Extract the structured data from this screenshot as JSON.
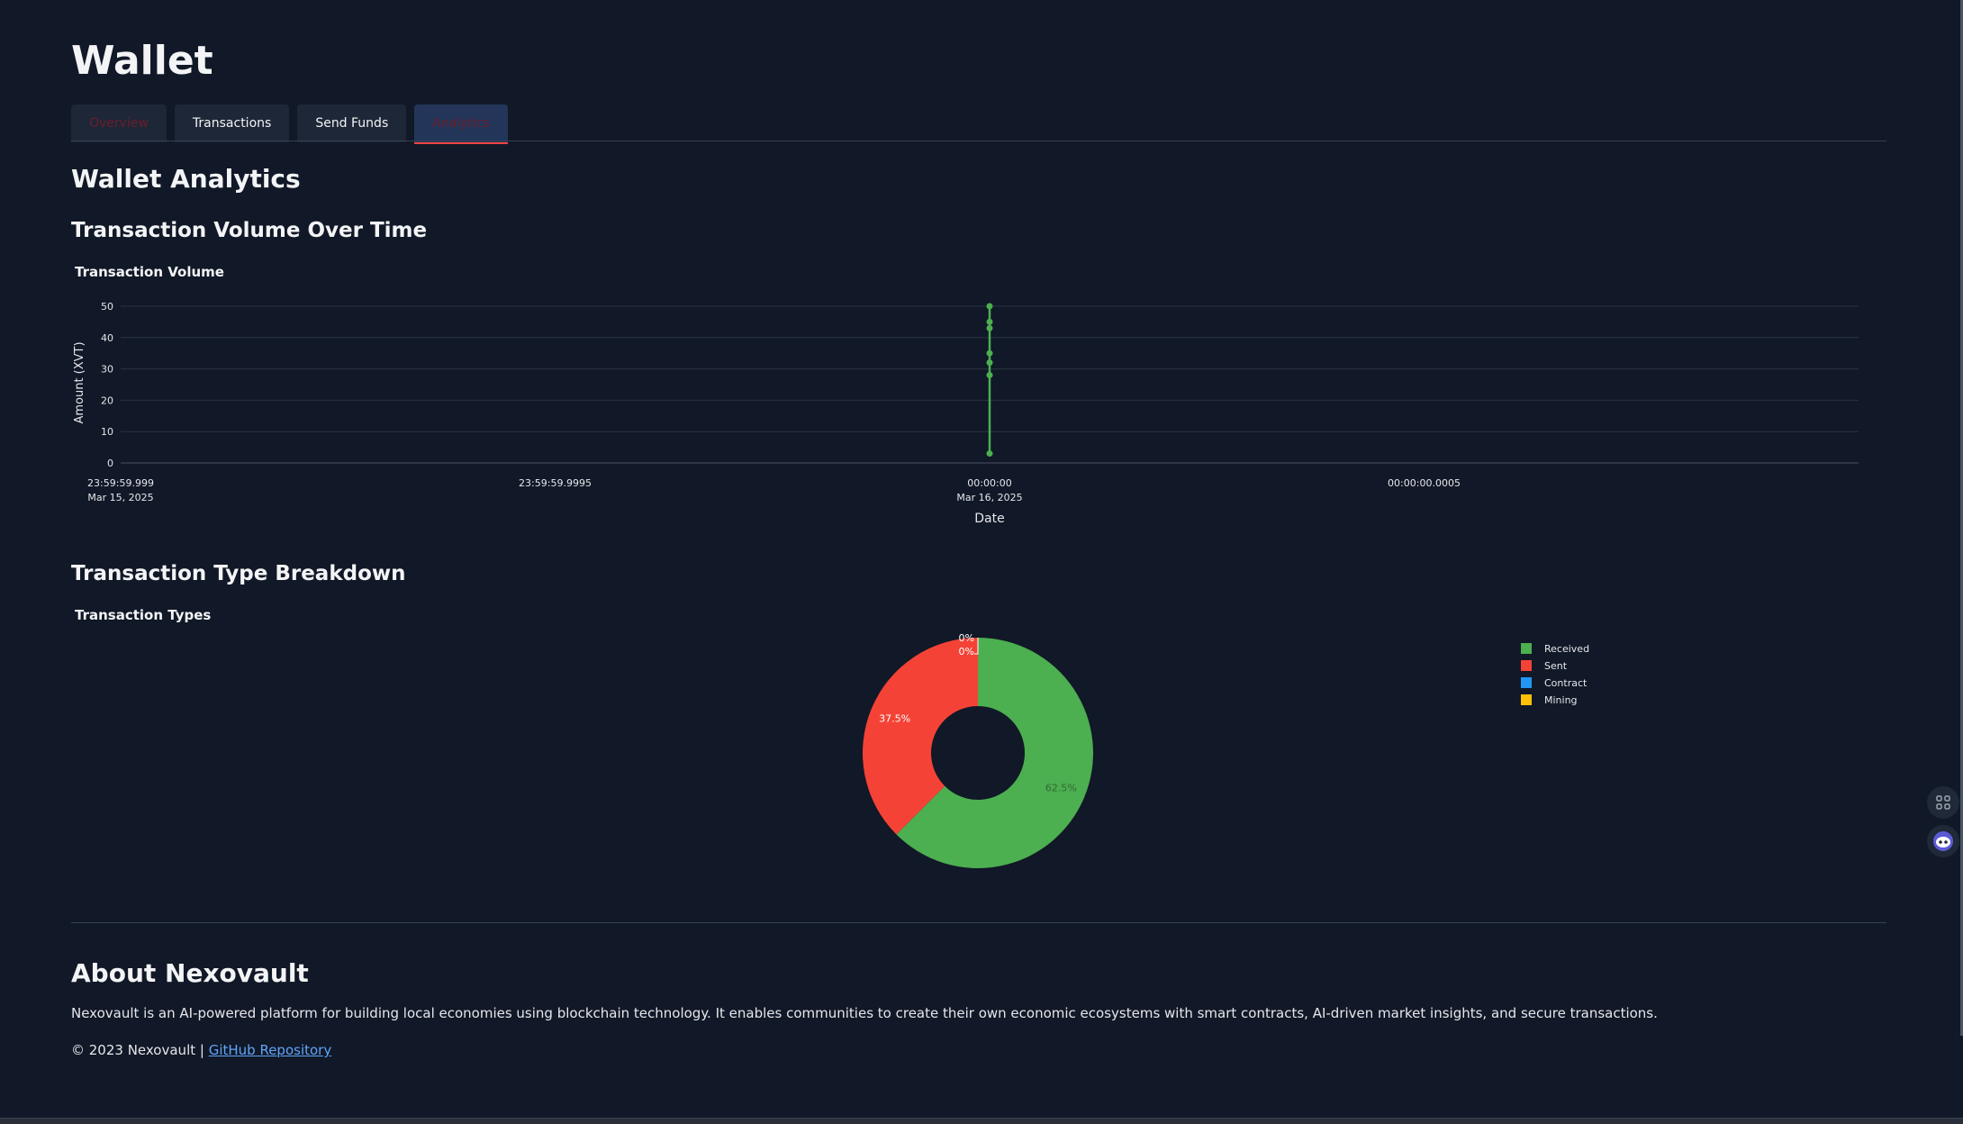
{
  "page_title": "Wallet",
  "tabs": [
    {
      "label": "Overview",
      "state": "dim"
    },
    {
      "label": "Transactions",
      "state": "normal"
    },
    {
      "label": "Send Funds",
      "state": "normal"
    },
    {
      "label": "Analytics",
      "state": "active"
    }
  ],
  "analytics_heading": "Wallet Analytics",
  "volume_section_heading": "Transaction Volume Over Time",
  "types_section_heading": "Transaction Type Breakdown",
  "about": {
    "heading": "About Nexovault",
    "text": "Nexovault is an AI-powered platform for building local economies using blockchain technology. It enables communities to create their own economic ecosystems with smart contracts, AI-driven market insights, and secure transactions.",
    "copyright": "© 2023 Nexovault | ",
    "link_label": "GitHub Repository"
  },
  "chart_data": [
    {
      "type": "line",
      "title": "Transaction Volume",
      "xlabel": "Date",
      "ylabel": "Amount (XVT)",
      "ylim": [
        0,
        50
      ],
      "yticks": [
        0,
        10,
        20,
        30,
        40,
        50
      ],
      "xticks": [
        {
          "line1": "23:59:59.999",
          "line2": "Mar 15, 2025"
        },
        {
          "line1": "23:59:59.9995",
          "line2": ""
        },
        {
          "line1": "00:00:00",
          "line2": "Mar 16, 2025"
        },
        {
          "line1": "00:00:00.0005",
          "line2": ""
        }
      ],
      "grid": true,
      "color": "#4caf50",
      "series": [
        {
          "x": [
            "2025-03-16 00:00:00",
            "2025-03-16 00:00:00",
            "2025-03-16 00:00:00",
            "2025-03-16 00:00:00",
            "2025-03-16 00:00:00",
            "2025-03-16 00:00:00",
            "2025-03-16 00:00:00"
          ],
          "values": [
            50,
            45,
            43,
            35,
            32,
            28,
            3
          ]
        }
      ]
    },
    {
      "type": "pie",
      "title": "Transaction Types",
      "hole": true,
      "legend_position": "top-right",
      "categories": [
        "Received",
        "Sent",
        "Contract",
        "Mining"
      ],
      "values": [
        62.5,
        37.5,
        0,
        0
      ],
      "labels": [
        "62.5%",
        "37.5%",
        "0%",
        "0%"
      ],
      "colors": [
        "#4caf50",
        "#f44336",
        "#2196f3",
        "#ffc107"
      ]
    }
  ]
}
